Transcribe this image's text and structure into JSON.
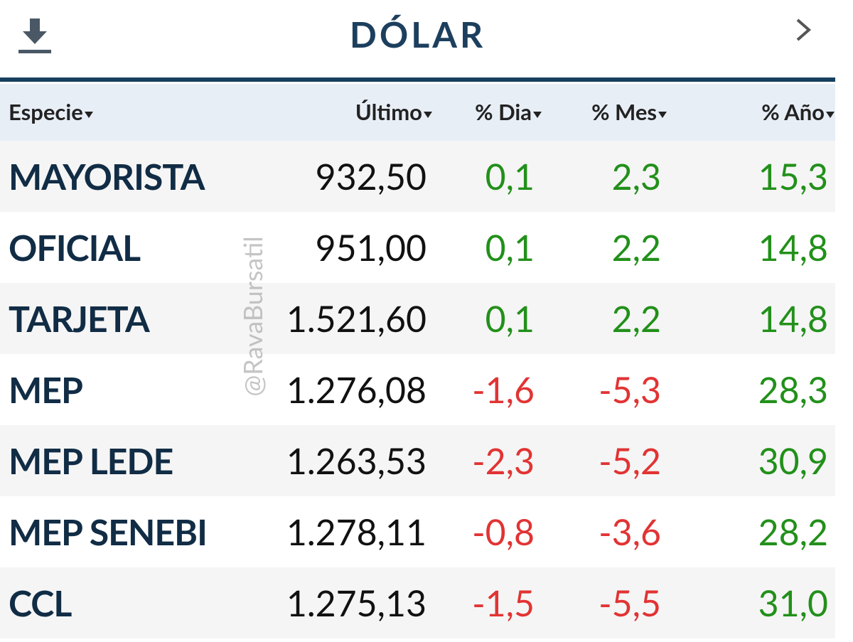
{
  "header": {
    "title": "DÓLAR"
  },
  "table": {
    "columns": [
      "Especie",
      "Último",
      "% Dia",
      "% Mes",
      "% Año"
    ],
    "rows": [
      [
        "MAYORISTA",
        "932,50",
        "0,1",
        "2,3",
        "15,3"
      ],
      [
        "OFICIAL",
        "951,00",
        "0,1",
        "2,2",
        "14,8"
      ],
      [
        "TARJETA",
        "1.521,60",
        "0,1",
        "2,2",
        "14,8"
      ],
      [
        "MEP",
        "1.276,08",
        "-1,6",
        "-5,3",
        "28,3"
      ],
      [
        "MEP LEDE",
        "1.263,53",
        "-2,3",
        "-5,2",
        "30,9"
      ],
      [
        "MEP SENEBI",
        "1.278,11",
        "-0,8",
        "-3,6",
        "28,2"
      ],
      [
        "CCL",
        "1.275,13",
        "-1,5",
        "-5,5",
        "31,0"
      ]
    ]
  },
  "watermark": "@RavaBursatil"
}
